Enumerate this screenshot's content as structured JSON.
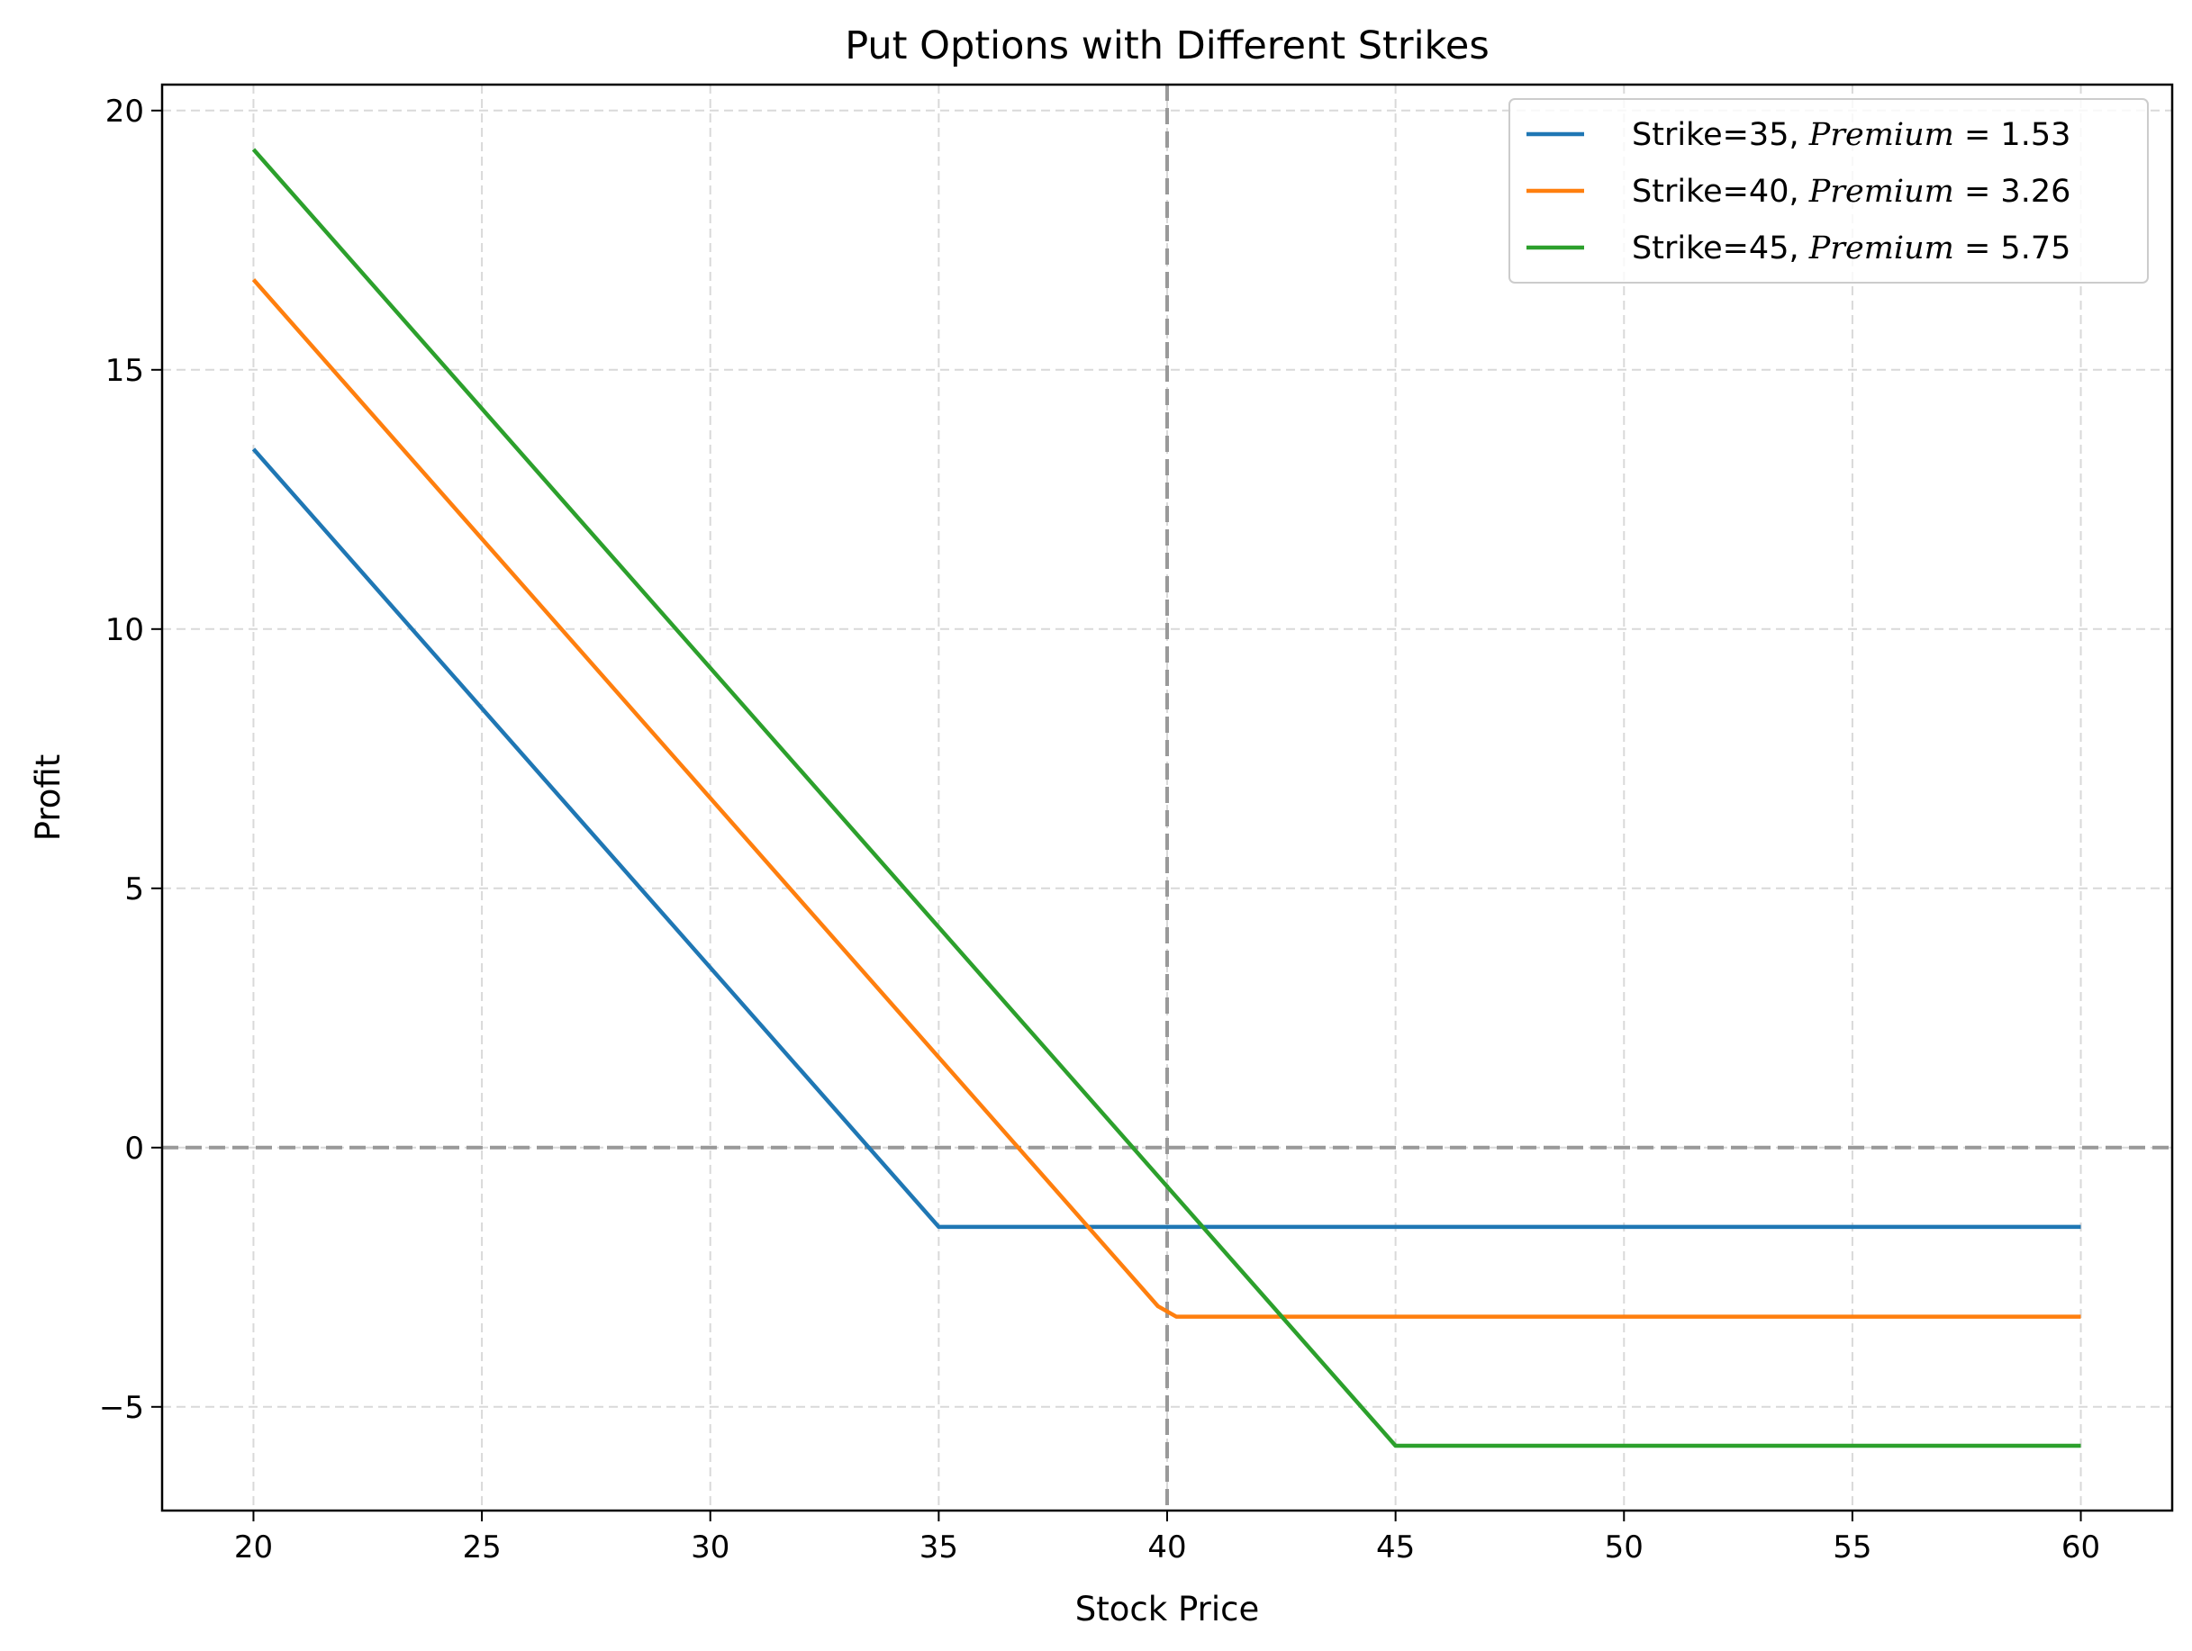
{
  "chart_data": {
    "type": "line",
    "title": "Put Options with Different Strikes",
    "xlabel": "Stock Price",
    "ylabel": "Profit",
    "xlim": [
      18,
      62
    ],
    "ylim": [
      -7,
      20.5
    ],
    "xticks": [
      20,
      25,
      30,
      35,
      40,
      45,
      50,
      55,
      60
    ],
    "yticks": [
      -5,
      0,
      5,
      10,
      15,
      20
    ],
    "ytick_labels": [
      "−5",
      "0",
      "5",
      "10",
      "15",
      "20"
    ],
    "grid": true,
    "legend_position": "top-right",
    "reference_lines": [
      {
        "orientation": "horizontal",
        "value": 0,
        "style": "dashed",
        "color": "#999999"
      },
      {
        "orientation": "vertical",
        "value": 40,
        "style": "dashed",
        "color": "#999999"
      }
    ],
    "series": [
      {
        "name": "Strike=35, Premium = 1.53",
        "name_text": "Strike=35, ",
        "name_math": "Premium",
        "name_value": " = 1.53",
        "color": "#1f77b4",
        "strike": 35,
        "premium": 1.53,
        "x": [
          20,
          35,
          35.4,
          60
        ],
        "y": [
          13.47,
          -1.53,
          -1.53,
          -1.53
        ]
      },
      {
        "name": "Strike=40, Premium = 3.26",
        "name_text": "Strike=40, ",
        "name_math": "Premium",
        "name_value": " = 3.26",
        "color": "#ff7f0e",
        "strike": 40,
        "premium": 3.26,
        "x": [
          20,
          39.8,
          40.2,
          60
        ],
        "y": [
          16.74,
          -3.06,
          -3.26,
          -3.26
        ]
      },
      {
        "name": "Strike=45, Premium = 5.75",
        "name_text": "Strike=45, ",
        "name_math": "Premium",
        "name_value": " = 5.75",
        "color": "#2ca02c",
        "strike": 45,
        "premium": 5.75,
        "x": [
          20,
          44.8,
          45,
          60
        ],
        "y": [
          19.25,
          -5.55,
          -5.75,
          -5.75
        ]
      }
    ]
  }
}
